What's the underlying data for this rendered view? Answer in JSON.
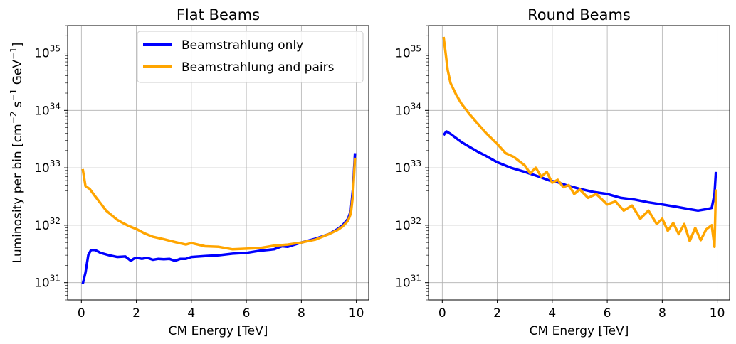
{
  "figure": {
    "ylabel_main": "Luminosity per bin [cm",
    "ylabel_sup1": "−2",
    "ylabel_mid1": " s",
    "ylabel_sup2": "−1",
    "ylabel_mid2": " GeV",
    "ylabel_sup3": "−1",
    "ylabel_end": "]"
  },
  "chart_data": [
    {
      "type": "line",
      "title": "Flat Beams",
      "xlabel": "CM Energy [TeV]",
      "ylabel": "Luminosity per bin [cm−2 s−1 GeV−1]",
      "xlim": [
        -0.5,
        10.45
      ],
      "ylim": [
        5e+30,
        3e+35
      ],
      "yscale": "log",
      "grid": true,
      "legend": "upper-center",
      "xticks": [
        "0",
        "2",
        "4",
        "6",
        "8",
        "10"
      ],
      "yticks": [
        "10^31",
        "10^32",
        "10^33",
        "10^34",
        "10^35"
      ],
      "series": [
        {
          "name": "Beamstrahlung only",
          "color": "#0000ff",
          "x": [
            0.05,
            0.15,
            0.25,
            0.35,
            0.5,
            0.7,
            1.0,
            1.3,
            1.6,
            1.8,
            1.9,
            2.0,
            2.2,
            2.4,
            2.6,
            2.8,
            3.0,
            3.2,
            3.4,
            3.6,
            3.8,
            4.0,
            4.5,
            5.0,
            5.5,
            6.0,
            6.5,
            7.0,
            7.3,
            7.5,
            8.0,
            8.5,
            9.0,
            9.3,
            9.5,
            9.7,
            9.8,
            9.88,
            9.95
          ],
          "y": [
            9.5e+30,
            1.5e+31,
            3e+31,
            3.7e+31,
            3.7e+31,
            3.3e+31,
            3e+31,
            2.8e+31,
            2.85e+31,
            2.4e+31,
            2.6e+31,
            2.7e+31,
            2.6e+31,
            2.7e+31,
            2.5e+31,
            2.6e+31,
            2.55e+31,
            2.6e+31,
            2.4e+31,
            2.6e+31,
            2.6e+31,
            2.8e+31,
            2.9e+31,
            3e+31,
            3.2e+31,
            3.3e+31,
            3.6e+31,
            3.8e+31,
            4.3e+31,
            4.2e+31,
            5e+31,
            5.8e+31,
            7e+31,
            8.5e+31,
            1e+32,
            1.3e+32,
            1.8e+32,
            4.5e+32,
            1.8e+33
          ]
        },
        {
          "name": "Beamstrahlung and pairs",
          "color": "#ffa500",
          "x": [
            0.05,
            0.15,
            0.3,
            0.5,
            0.7,
            0.9,
            1.1,
            1.3,
            1.5,
            1.7,
            2.0,
            2.3,
            2.6,
            3.0,
            3.4,
            3.8,
            4.0,
            4.5,
            5.0,
            5.5,
            6.0,
            6.5,
            7.0,
            7.5,
            8.0,
            8.5,
            9.0,
            9.3,
            9.5,
            9.7,
            9.8,
            9.88,
            9.95
          ],
          "y": [
            9.5e+32,
            4.8e+32,
            4.3e+32,
            3.2e+32,
            2.4e+32,
            1.8e+32,
            1.5e+32,
            1.25e+32,
            1.1e+32,
            9.8e+31,
            8.6e+31,
            7.2e+31,
            6.3e+31,
            5.7e+31,
            5.1e+31,
            4.6e+31,
            4.9e+31,
            4.3e+31,
            4.2e+31,
            3.8e+31,
            3.9e+31,
            4e+31,
            4.4e+31,
            4.6e+31,
            5e+31,
            5.6e+31,
            7e+31,
            8.2e+31,
            9.5e+31,
            1.2e+32,
            1.6e+32,
            3.5e+32,
            1.5e+33
          ]
        }
      ]
    },
    {
      "type": "line",
      "title": "Round Beams",
      "xlabel": "CM Energy [TeV]",
      "xlim": [
        -0.5,
        10.45
      ],
      "ylim": [
        5e+30,
        3e+35
      ],
      "yscale": "log",
      "grid": true,
      "xticks": [
        "0",
        "2",
        "4",
        "6",
        "8",
        "10"
      ],
      "yticks": [
        "10^31",
        "10^32",
        "10^33",
        "10^34",
        "10^35"
      ],
      "series": [
        {
          "name": "Beamstrahlung only",
          "color": "#0000ff",
          "x": [
            0.05,
            0.15,
            0.3,
            0.5,
            0.7,
            1.0,
            1.3,
            1.6,
            2.0,
            2.5,
            3.0,
            3.3,
            3.6,
            3.9,
            4.2,
            4.5,
            5.0,
            5.5,
            6.0,
            6.5,
            7.0,
            7.5,
            8.0,
            8.5,
            9.0,
            9.3,
            9.6,
            9.8,
            9.9,
            9.95
          ],
          "y": [
            3.7e+33,
            4.3e+33,
            3.9e+33,
            3.3e+33,
            2.8e+33,
            2.3e+33,
            1.9e+33,
            1.6e+33,
            1.25e+33,
            1e+33,
            8.5e+32,
            7.6e+32,
            6.8e+32,
            6e+32,
            5.6e+32,
            5e+32,
            4.3e+32,
            3.8e+32,
            3.5e+32,
            3e+32,
            2.8e+32,
            2.5e+32,
            2.3e+32,
            2.1e+32,
            1.9e+32,
            1.8e+32,
            1.9e+32,
            2e+32,
            3.5e+32,
            8.5e+32
          ]
        },
        {
          "name": "Beamstrahlung and pairs",
          "color": "#ffa500",
          "x": [
            0.05,
            0.1,
            0.2,
            0.3,
            0.5,
            0.7,
            1.0,
            1.3,
            1.6,
            2.0,
            2.3,
            2.6,
            3.0,
            3.2,
            3.4,
            3.6,
            3.8,
            4.0,
            4.2,
            4.4,
            4.6,
            4.8,
            5.0,
            5.3,
            5.6,
            6.0,
            6.3,
            6.6,
            6.9,
            7.2,
            7.5,
            7.8,
            8.0,
            8.2,
            8.4,
            8.6,
            8.8,
            9.0,
            9.2,
            9.4,
            9.6,
            9.8,
            9.9,
            9.95
          ],
          "y": [
            1.9e+35,
            1.2e+35,
            5e+34,
            3e+34,
            1.9e+34,
            1.3e+34,
            8.5e+33,
            5.8e+33,
            4e+33,
            2.6e+33,
            1.8e+33,
            1.55e+33,
            1.1e+33,
            8e+32,
            1e+33,
            7e+32,
            8.5e+32,
            5.5e+32,
            6.2e+32,
            4.6e+32,
            5e+32,
            3.5e+32,
            4.2e+32,
            3e+32,
            3.5e+32,
            2.3e+32,
            2.6e+32,
            1.8e+32,
            2.2e+32,
            1.3e+32,
            1.8e+32,
            1.05e+32,
            1.3e+32,
            8e+31,
            1.1e+32,
            7e+31,
            1.05e+32,
            5.3e+31,
            9e+31,
            5.5e+31,
            8.5e+31,
            1e+32,
            4.2e+31,
            4.2e+32
          ]
        }
      ]
    }
  ]
}
